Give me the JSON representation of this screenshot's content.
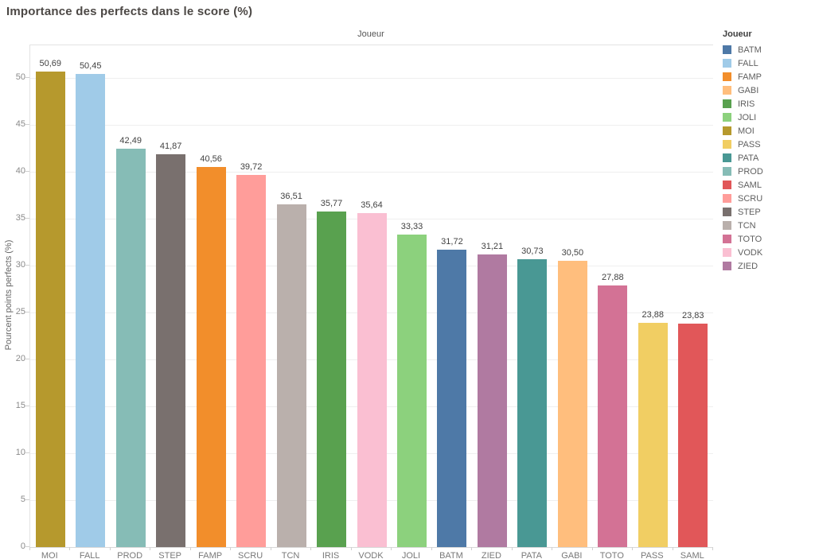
{
  "chart_data": {
    "type": "bar",
    "title": "Importance des perfects dans le score (%)",
    "pane_header": "Joueur",
    "xlabel": "Joueur",
    "ylabel": "Pourcent points perfects (%)",
    "ylim": [
      0,
      53.5
    ],
    "yticks": [
      0,
      5,
      10,
      15,
      20,
      25,
      30,
      35,
      40,
      45,
      50
    ],
    "grid": true,
    "legend_position": "right",
    "categories": [
      "MOI",
      "FALL",
      "PROD",
      "STEP",
      "FAMP",
      "SCRU",
      "TCN",
      "IRIS",
      "VODK",
      "JOLI",
      "BATM",
      "ZIED",
      "PATA",
      "GABI",
      "TOTO",
      "PASS",
      "SAML"
    ],
    "values": [
      50.69,
      50.45,
      42.49,
      41.87,
      40.56,
      39.72,
      36.51,
      35.77,
      35.64,
      33.33,
      31.72,
      31.21,
      30.73,
      30.5,
      27.88,
      23.88,
      23.83
    ],
    "value_labels": [
      "50,69",
      "50,45",
      "42,49",
      "41,87",
      "40,56",
      "39,72",
      "36,51",
      "35,77",
      "35,64",
      "33,33",
      "31,72",
      "31,21",
      "30,73",
      "30,50",
      "27,88",
      "23,88",
      "23,83"
    ],
    "colors": {
      "BATM": "#4E79A7",
      "FALL": "#A0CBE8",
      "FAMP": "#F28E2B",
      "GABI": "#FFBE7D",
      "IRIS": "#59A14F",
      "JOLI": "#8CD17D",
      "MOI": "#B6992D",
      "PASS": "#F1CE63",
      "PATA": "#499894",
      "PROD": "#86BCB6",
      "SAML": "#E15759",
      "SCRU": "#FF9D9A",
      "STEP": "#79706E",
      "TCN": "#BAB0AC",
      "TOTO": "#D37295",
      "VODK": "#FABFD2",
      "ZIED": "#B07AA1"
    },
    "legend": {
      "title": "Joueur",
      "entries": [
        "BATM",
        "FALL",
        "FAMP",
        "GABI",
        "IRIS",
        "JOLI",
        "MOI",
        "PASS",
        "PATA",
        "PROD",
        "SAML",
        "SCRU",
        "STEP",
        "TCN",
        "TOTO",
        "VODK",
        "ZIED"
      ]
    }
  }
}
